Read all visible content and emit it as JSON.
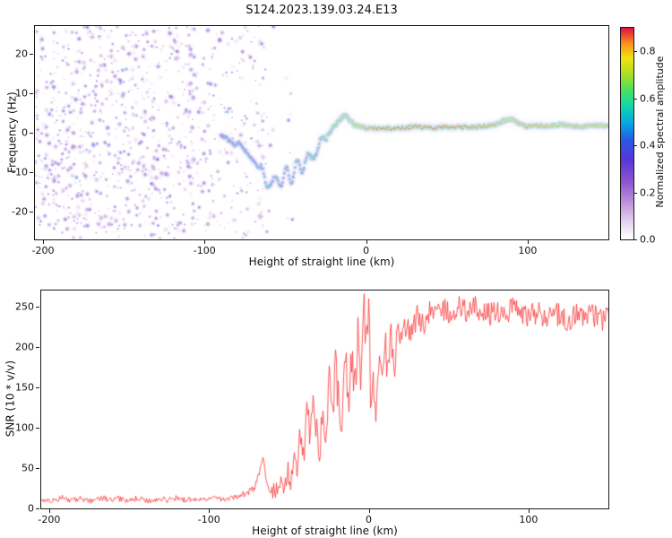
{
  "figure": {
    "title": "S124.2023.139.03.24.E13"
  },
  "chart_data": [
    {
      "type": "heatmap",
      "name": "spectrogram",
      "title": "S124.2023.139.03.24.E13",
      "xlabel": "Height of straight line (km)",
      "ylabel": "Frequency (Hz)",
      "xlim": [
        -205,
        150
      ],
      "ylim": [
        -27,
        27
      ],
      "xticks": [
        -200,
        -100,
        0,
        100
      ],
      "yticks": [
        -20,
        -10,
        0,
        10,
        20
      ],
      "colorbar": {
        "label": "Normalized spectral amplitude",
        "ticks": [
          "0.0",
          "0.2",
          "0.4",
          "0.6",
          "0.8"
        ],
        "tick_values": [
          0,
          0.2,
          0.4,
          0.6,
          0.8
        ],
        "vmin": 0,
        "vmax": 0.9,
        "colormap_stops": [
          {
            "t": 0.0,
            "color": "#ffffff"
          },
          {
            "t": 0.06,
            "color": "#ece0f5"
          },
          {
            "t": 0.16,
            "color": "#c49ae0"
          },
          {
            "t": 0.27,
            "color": "#8e56cf"
          },
          {
            "t": 0.38,
            "color": "#5636d8"
          },
          {
            "t": 0.47,
            "color": "#2b59e8"
          },
          {
            "t": 0.55,
            "color": "#07a7e0"
          },
          {
            "t": 0.63,
            "color": "#0fd8b0"
          },
          {
            "t": 0.71,
            "color": "#4fe05a"
          },
          {
            "t": 0.79,
            "color": "#b4e01f"
          },
          {
            "t": 0.86,
            "color": "#f2e211"
          },
          {
            "t": 0.93,
            "color": "#fb8c1e"
          },
          {
            "t": 1.0,
            "color": "#dc1440"
          }
        ]
      },
      "noise": {
        "description": "scattered low-amplitude speckle noise",
        "x_range": [
          -205,
          -45
        ],
        "dense_x_range": [
          -205,
          -105
        ],
        "freq_range": [
          -27,
          27
        ],
        "amplitude_range": [
          0.04,
          0.32
        ],
        "blob_count": 1400
      },
      "isolated_echoes": [
        {
          "x": -152,
          "freq": -5,
          "amp": 0.5
        },
        {
          "x": -147,
          "freq": -5.5,
          "amp": 0.45
        }
      ],
      "trace": {
        "description": "coherent echo trace: descends to about -13.5 Hz near x=-58 km then levels near +1.5 Hz with maximum amplitude for x>0",
        "points": [
          [
            -90,
            -0.5,
            0.45
          ],
          [
            -86,
            -1.5,
            0.5
          ],
          [
            -82,
            -3,
            0.55
          ],
          [
            -78,
            -2.5,
            0.5
          ],
          [
            -74,
            -5,
            0.55
          ],
          [
            -70,
            -7,
            0.5
          ],
          [
            -66,
            -9,
            0.55
          ],
          [
            -62,
            -12,
            0.6
          ],
          [
            -58,
            -13.5,
            0.55
          ],
          [
            -55,
            -11,
            0.6
          ],
          [
            -52,
            -13,
            0.5
          ],
          [
            -49,
            -9.5,
            0.55
          ],
          [
            -46,
            -11.5,
            0.6
          ],
          [
            -43,
            -8,
            0.6
          ],
          [
            -40,
            -9.5,
            0.55
          ],
          [
            -37,
            -6,
            0.6
          ],
          [
            -34,
            -7,
            0.65
          ],
          [
            -31,
            -4,
            0.6
          ],
          [
            -28,
            -3,
            0.65
          ],
          [
            -25,
            -1,
            0.7
          ],
          [
            -22,
            0.5,
            0.7
          ],
          [
            -19,
            2,
            0.72
          ],
          [
            -16,
            3.5,
            0.75
          ],
          [
            -13,
            4.5,
            0.72
          ],
          [
            -10,
            3,
            0.78
          ],
          [
            -7,
            2,
            0.8
          ],
          [
            -4,
            1.5,
            0.82
          ],
          [
            0,
            1,
            0.85
          ],
          [
            5,
            1.2,
            0.87
          ],
          [
            10,
            1,
            0.88
          ],
          [
            20,
            1.2,
            0.88
          ],
          [
            30,
            1.5,
            0.88
          ],
          [
            40,
            1.2,
            0.88
          ],
          [
            50,
            1.5,
            0.88
          ],
          [
            60,
            1.3,
            0.88
          ],
          [
            70,
            1.5,
            0.87
          ],
          [
            80,
            2,
            0.85
          ],
          [
            85,
            3,
            0.8
          ],
          [
            90,
            3.5,
            0.78
          ],
          [
            95,
            2,
            0.82
          ],
          [
            100,
            1.5,
            0.85
          ],
          [
            110,
            1.8,
            0.84
          ],
          [
            120,
            2,
            0.82
          ],
          [
            130,
            1.6,
            0.83
          ],
          [
            140,
            1.8,
            0.82
          ],
          [
            150,
            1.6,
            0.82
          ]
        ]
      }
    },
    {
      "type": "line",
      "name": "snr",
      "xlabel": "Height of straight line (km)",
      "ylabel": "SNR (10 * v/v)",
      "xlim": [
        -205,
        150
      ],
      "ylim": [
        0,
        270
      ],
      "xticks": [
        -200,
        -100,
        0,
        100
      ],
      "yticks": [
        0,
        50,
        100,
        150,
        200,
        250
      ],
      "line_color": "#fa3434",
      "noise_jitter": {
        "base": 3,
        "relative": 0.05,
        "volatile_x_range": [
          -62,
          18
        ],
        "volatile_factor": 2.6
      },
      "series": [
        {
          "name": "SNR",
          "points": [
            [
              -205,
              12
            ],
            [
              -198,
              9
            ],
            [
              -192,
              13
            ],
            [
              -186,
              10
            ],
            [
              -180,
              12
            ],
            [
              -174,
              9
            ],
            [
              -168,
              13
            ],
            [
              -162,
              10
            ],
            [
              -156,
              12
            ],
            [
              -150,
              10
            ],
            [
              -144,
              13
            ],
            [
              -138,
              9
            ],
            [
              -132,
              12
            ],
            [
              -126,
              10
            ],
            [
              -120,
              13
            ],
            [
              -114,
              10
            ],
            [
              -108,
              12
            ],
            [
              -102,
              10
            ],
            [
              -96,
              13
            ],
            [
              -90,
              11
            ],
            [
              -84,
              13
            ],
            [
              -80,
              16
            ],
            [
              -76,
              20
            ],
            [
              -72,
              25
            ],
            [
              -69,
              40
            ],
            [
              -67,
              65
            ],
            [
              -65,
              45
            ],
            [
              -63,
              22
            ],
            [
              -61,
              18
            ],
            [
              -59,
              25
            ],
            [
              -57,
              20
            ],
            [
              -55,
              35
            ],
            [
              -53,
              25
            ],
            [
              -51,
              50
            ],
            [
              -49,
              30
            ],
            [
              -47,
              70
            ],
            [
              -45,
              45
            ],
            [
              -43,
              100
            ],
            [
              -41,
              60
            ],
            [
              -39,
              140
            ],
            [
              -37,
              80
            ],
            [
              -35,
              150
            ],
            [
              -33,
              95
            ],
            [
              -31,
              65
            ],
            [
              -29,
              130
            ],
            [
              -27,
              85
            ],
            [
              -25,
              155
            ],
            [
              -23,
              105
            ],
            [
              -21,
              170
            ],
            [
              -19,
              125
            ],
            [
              -17,
              95
            ],
            [
              -15,
              200
            ],
            [
              -13,
              135
            ],
            [
              -11,
              185
            ],
            [
              -9,
              155
            ],
            [
              -7,
              225
            ],
            [
              -5,
              165
            ],
            [
              -3,
              245
            ],
            [
              -1,
              185
            ],
            [
              0,
              253
            ],
            [
              1,
              100
            ],
            [
              2,
              170
            ],
            [
              4,
              115
            ],
            [
              6,
              180
            ],
            [
              8,
              145
            ],
            [
              10,
              200
            ],
            [
              12,
              165
            ],
            [
              14,
              215
            ],
            [
              16,
              185
            ],
            [
              18,
              225
            ],
            [
              20,
              205
            ],
            [
              23,
              228
            ],
            [
              26,
              215
            ],
            [
              30,
              238
            ],
            [
              34,
              228
            ],
            [
              38,
              245
            ],
            [
              42,
              235
            ],
            [
              46,
              248
            ],
            [
              50,
              240
            ],
            [
              55,
              250
            ],
            [
              60,
              243
            ],
            [
              65,
              252
            ],
            [
              70,
              244
            ],
            [
              75,
              240
            ],
            [
              80,
              247
            ],
            [
              85,
              238
            ],
            [
              90,
              248
            ],
            [
              95,
              242
            ],
            [
              100,
              238
            ],
            [
              105,
              244
            ],
            [
              110,
              236
            ],
            [
              115,
              242
            ],
            [
              120,
              238
            ],
            [
              125,
              232
            ],
            [
              130,
              240
            ],
            [
              135,
              234
            ],
            [
              140,
              240
            ],
            [
              145,
              234
            ],
            [
              150,
              237
            ]
          ]
        }
      ]
    }
  ]
}
